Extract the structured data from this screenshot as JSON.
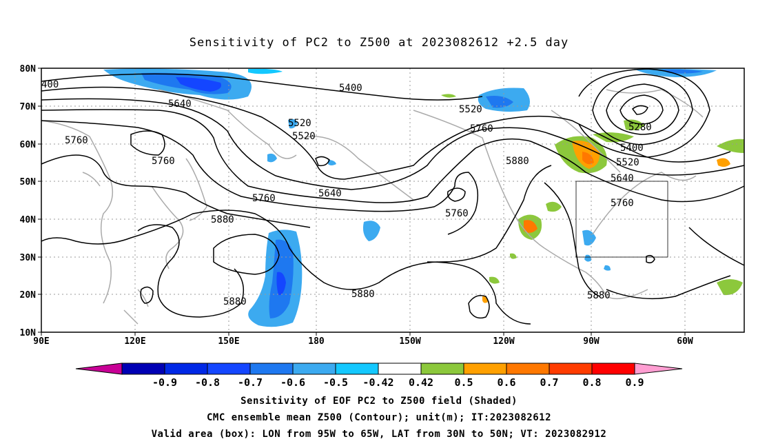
{
  "title": "Sensitivity of PC2 to Z500 at 2023082612 +2.5 day",
  "map": {
    "lat_labels": [
      "80N",
      "70N",
      "60N",
      "50N",
      "40N",
      "30N",
      "20N",
      "10N"
    ],
    "lon_labels": [
      "90E",
      "120E",
      "150E",
      "180",
      "150W",
      "120W",
      "90W",
      "60W"
    ],
    "contour_labels": [
      {
        "text": "400"
      },
      {
        "text": "5400"
      },
      {
        "text": "5640"
      },
      {
        "text": "5520"
      },
      {
        "text": "5520"
      },
      {
        "text": "5520"
      },
      {
        "text": "5760"
      },
      {
        "text": "5280"
      },
      {
        "text": "5400"
      },
      {
        "text": "5760"
      },
      {
        "text": "5760"
      },
      {
        "text": "5880"
      },
      {
        "text": "5520"
      },
      {
        "text": "5640"
      },
      {
        "text": "5760"
      },
      {
        "text": "5640"
      },
      {
        "text": "5760"
      },
      {
        "text": "5760"
      },
      {
        "text": "5880"
      },
      {
        "text": "5880"
      },
      {
        "text": "5880"
      },
      {
        "text": "5880"
      }
    ],
    "valid_box": {
      "lon_from": "95W",
      "lon_to": "65W",
      "lat_from": "30N",
      "lat_to": "50N"
    }
  },
  "colorbar": {
    "labels": [
      "-0.9",
      "-0.8",
      "-0.7",
      "-0.6",
      "-0.5",
      "-0.42",
      "0.42",
      "0.5",
      "0.6",
      "0.7",
      "0.8",
      "0.9"
    ],
    "colors": [
      "#0000b4",
      "#0028e6",
      "#1446ff",
      "#1e78f0",
      "#3caaf0",
      "#14c8ff",
      "#ffffff",
      "#8cc83c",
      "#ffa000",
      "#ff7800",
      "#ff3c00",
      "#ff0000"
    ],
    "low_end_color": "#c80096",
    "high_end_color": "#ff9ed2"
  },
  "footer": {
    "line1": "Sensitivity of EOF PC2 to Z500 field (Shaded)",
    "line2": "CMC ensemble mean Z500 (Contour); unit(m); IT:2023082612",
    "line3": "Valid area (box): LON from 95W to 65W, LAT from 30N to 50N; VT: 2023082912"
  }
}
